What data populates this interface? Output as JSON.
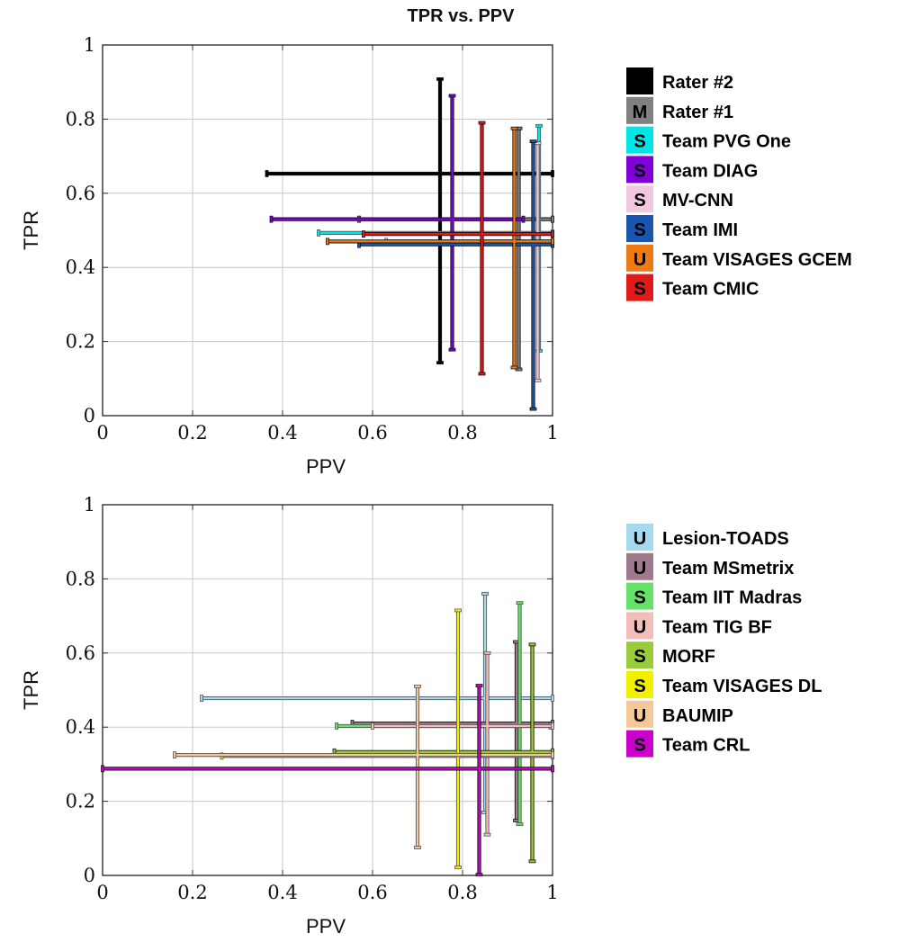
{
  "title": "TPR vs. PPV",
  "chart_data": [
    {
      "type": "scatter",
      "title": "TPR vs. PPV",
      "xlabel": "PPV",
      "ylabel": "TPR",
      "xlim": [
        0,
        1
      ],
      "ylim": [
        0,
        1
      ],
      "xticks": [
        "0",
        "0.2",
        "0.4",
        "0.6",
        "0.8",
        "1"
      ],
      "yticks": [
        "0",
        "0.2",
        "0.4",
        "0.6",
        "0.8",
        "1"
      ],
      "grid": true,
      "legend_position": "right",
      "series": [
        {
          "name": "Rater #2",
          "badge": "",
          "color": "#000000",
          "center": {
            "ppv": 0.75,
            "tpr": 0.653
          },
          "ppv_range": [
            0.365,
            1.0
          ],
          "tpr_range": [
            0.143,
            0.908
          ]
        },
        {
          "name": "Rater #1",
          "badge": "M",
          "color": "#808080",
          "center": {
            "ppv": 0.925,
            "tpr": 0.53
          },
          "ppv_range": [
            0.57,
            1.0
          ],
          "tpr_range": [
            0.125,
            0.775
          ]
        },
        {
          "name": "Team PVG One",
          "badge": "S",
          "color": "#00e5e5",
          "center": {
            "ppv": 0.97,
            "tpr": 0.493
          },
          "ppv_range": [
            0.48,
            1.0
          ],
          "tpr_range": [
            0.175,
            0.782
          ]
        },
        {
          "name": "Team DIAG",
          "badge": "S",
          "color": "#7f00d9",
          "center": {
            "ppv": 0.777,
            "tpr": 0.53
          },
          "ppv_range": [
            0.375,
            0.935
          ],
          "tpr_range": [
            0.178,
            0.863
          ]
        },
        {
          "name": "MV-CNN",
          "badge": "S",
          "color": "#f2c8e0",
          "center": {
            "ppv": 0.967,
            "tpr": 0.47
          },
          "ppv_range": [
            0.63,
            1.0
          ],
          "tpr_range": [
            0.095,
            0.735
          ]
        },
        {
          "name": "Team IMI",
          "badge": "S",
          "color": "#1a56b0",
          "center": {
            "ppv": 0.957,
            "tpr": 0.462
          },
          "ppv_range": [
            0.57,
            1.0
          ],
          "tpr_range": [
            0.018,
            0.74
          ]
        },
        {
          "name": "Team VISAGES GCEM",
          "badge": "U",
          "color": "#ee7a14",
          "center": {
            "ppv": 0.915,
            "tpr": 0.47
          },
          "ppv_range": [
            0.5,
            1.0
          ],
          "tpr_range": [
            0.13,
            0.775
          ]
        },
        {
          "name": "Team CMIC",
          "badge": "S",
          "color": "#e01919",
          "center": {
            "ppv": 0.843,
            "tpr": 0.49
          },
          "ppv_range": [
            0.58,
            1.0
          ],
          "tpr_range": [
            0.113,
            0.79
          ]
        }
      ]
    },
    {
      "type": "scatter",
      "title": "",
      "xlabel": "PPV",
      "ylabel": "TPR",
      "xlim": [
        0,
        1
      ],
      "ylim": [
        0,
        1
      ],
      "xticks": [
        "0",
        "0.2",
        "0.4",
        "0.6",
        "0.8",
        "1"
      ],
      "yticks": [
        "0",
        "0.2",
        "0.4",
        "0.6",
        "0.8",
        "1"
      ],
      "grid": true,
      "legend_position": "right",
      "series": [
        {
          "name": "Lesion-TOADS",
          "badge": "U",
          "color": "#a6d9f0",
          "center": {
            "ppv": 0.85,
            "tpr": 0.478
          },
          "ppv_range": [
            0.22,
            1.0
          ],
          "tpr_range": [
            0.17,
            0.76
          ]
        },
        {
          "name": "Team MSmetrix",
          "badge": "U",
          "color": "#a07a8c",
          "center": {
            "ppv": 0.92,
            "tpr": 0.41
          },
          "ppv_range": [
            0.555,
            1.0
          ],
          "tpr_range": [
            0.148,
            0.63
          ]
        },
        {
          "name": "Team IIT Madras",
          "badge": "S",
          "color": "#66e066",
          "center": {
            "ppv": 0.927,
            "tpr": 0.403
          },
          "ppv_range": [
            0.52,
            0.995
          ],
          "tpr_range": [
            0.138,
            0.735
          ]
        },
        {
          "name": "Team TIG BF",
          "badge": "U",
          "color": "#f5bcbc",
          "center": {
            "ppv": 0.855,
            "tpr": 0.403
          },
          "ppv_range": [
            0.6,
            1.0
          ],
          "tpr_range": [
            0.11,
            0.6
          ]
        },
        {
          "name": "MORF",
          "badge": "S",
          "color": "#9acb3a",
          "center": {
            "ppv": 0.955,
            "tpr": 0.333
          },
          "ppv_range": [
            0.515,
            1.0
          ],
          "tpr_range": [
            0.038,
            0.623
          ]
        },
        {
          "name": "Team VISAGES DL",
          "badge": "S",
          "color": "#f0f000",
          "center": {
            "ppv": 0.79,
            "tpr": 0.322
          },
          "ppv_range": [
            0.265,
            1.0
          ],
          "tpr_range": [
            0.022,
            0.715
          ]
        },
        {
          "name": "BAUMIP",
          "badge": "U",
          "color": "#f5c89a",
          "center": {
            "ppv": 0.7,
            "tpr": 0.325
          },
          "ppv_range": [
            0.16,
            1.0
          ],
          "tpr_range": [
            0.075,
            0.51
          ]
        },
        {
          "name": "Team CRL",
          "badge": "S",
          "color": "#cc00cc",
          "center": {
            "ppv": 0.837,
            "tpr": 0.288
          },
          "ppv_range": [
            0.0,
            1.0
          ],
          "tpr_range": [
            0.002,
            0.512
          ]
        }
      ]
    }
  ]
}
